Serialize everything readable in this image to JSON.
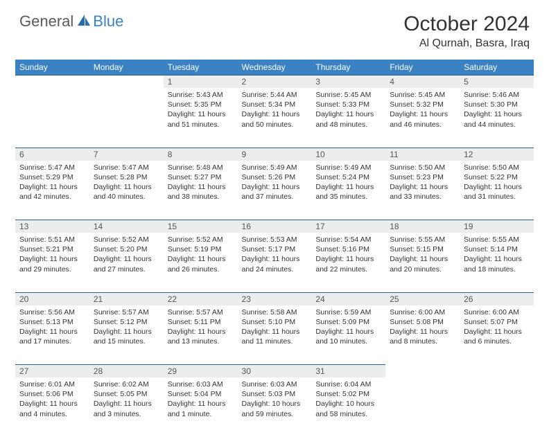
{
  "brand": {
    "part1": "General",
    "part2": "Blue",
    "icon_color": "#2b6cb0"
  },
  "title": "October 2024",
  "location": "Al Qurnah, Basra, Iraq",
  "colors": {
    "header_bg": "#3b82c4",
    "header_text": "#ffffff",
    "daynum_bg": "#eceded",
    "row_border": "#2b5c8a",
    "body_text": "#333333"
  },
  "day_headers": [
    "Sunday",
    "Monday",
    "Tuesday",
    "Wednesday",
    "Thursday",
    "Friday",
    "Saturday"
  ],
  "weeks": [
    [
      null,
      null,
      {
        "n": "1",
        "sr": "5:43 AM",
        "ss": "5:35 PM",
        "dl": "11 hours and 51 minutes."
      },
      {
        "n": "2",
        "sr": "5:44 AM",
        "ss": "5:34 PM",
        "dl": "11 hours and 50 minutes."
      },
      {
        "n": "3",
        "sr": "5:45 AM",
        "ss": "5:33 PM",
        "dl": "11 hours and 48 minutes."
      },
      {
        "n": "4",
        "sr": "5:45 AM",
        "ss": "5:32 PM",
        "dl": "11 hours and 46 minutes."
      },
      {
        "n": "5",
        "sr": "5:46 AM",
        "ss": "5:30 PM",
        "dl": "11 hours and 44 minutes."
      }
    ],
    [
      {
        "n": "6",
        "sr": "5:47 AM",
        "ss": "5:29 PM",
        "dl": "11 hours and 42 minutes."
      },
      {
        "n": "7",
        "sr": "5:47 AM",
        "ss": "5:28 PM",
        "dl": "11 hours and 40 minutes."
      },
      {
        "n": "8",
        "sr": "5:48 AM",
        "ss": "5:27 PM",
        "dl": "11 hours and 38 minutes."
      },
      {
        "n": "9",
        "sr": "5:49 AM",
        "ss": "5:26 PM",
        "dl": "11 hours and 37 minutes."
      },
      {
        "n": "10",
        "sr": "5:49 AM",
        "ss": "5:24 PM",
        "dl": "11 hours and 35 minutes."
      },
      {
        "n": "11",
        "sr": "5:50 AM",
        "ss": "5:23 PM",
        "dl": "11 hours and 33 minutes."
      },
      {
        "n": "12",
        "sr": "5:50 AM",
        "ss": "5:22 PM",
        "dl": "11 hours and 31 minutes."
      }
    ],
    [
      {
        "n": "13",
        "sr": "5:51 AM",
        "ss": "5:21 PM",
        "dl": "11 hours and 29 minutes."
      },
      {
        "n": "14",
        "sr": "5:52 AM",
        "ss": "5:20 PM",
        "dl": "11 hours and 27 minutes."
      },
      {
        "n": "15",
        "sr": "5:52 AM",
        "ss": "5:19 PM",
        "dl": "11 hours and 26 minutes."
      },
      {
        "n": "16",
        "sr": "5:53 AM",
        "ss": "5:17 PM",
        "dl": "11 hours and 24 minutes."
      },
      {
        "n": "17",
        "sr": "5:54 AM",
        "ss": "5:16 PM",
        "dl": "11 hours and 22 minutes."
      },
      {
        "n": "18",
        "sr": "5:55 AM",
        "ss": "5:15 PM",
        "dl": "11 hours and 20 minutes."
      },
      {
        "n": "19",
        "sr": "5:55 AM",
        "ss": "5:14 PM",
        "dl": "11 hours and 18 minutes."
      }
    ],
    [
      {
        "n": "20",
        "sr": "5:56 AM",
        "ss": "5:13 PM",
        "dl": "11 hours and 17 minutes."
      },
      {
        "n": "21",
        "sr": "5:57 AM",
        "ss": "5:12 PM",
        "dl": "11 hours and 15 minutes."
      },
      {
        "n": "22",
        "sr": "5:57 AM",
        "ss": "5:11 PM",
        "dl": "11 hours and 13 minutes."
      },
      {
        "n": "23",
        "sr": "5:58 AM",
        "ss": "5:10 PM",
        "dl": "11 hours and 11 minutes."
      },
      {
        "n": "24",
        "sr": "5:59 AM",
        "ss": "5:09 PM",
        "dl": "11 hours and 10 minutes."
      },
      {
        "n": "25",
        "sr": "6:00 AM",
        "ss": "5:08 PM",
        "dl": "11 hours and 8 minutes."
      },
      {
        "n": "26",
        "sr": "6:00 AM",
        "ss": "5:07 PM",
        "dl": "11 hours and 6 minutes."
      }
    ],
    [
      {
        "n": "27",
        "sr": "6:01 AM",
        "ss": "5:06 PM",
        "dl": "11 hours and 4 minutes."
      },
      {
        "n": "28",
        "sr": "6:02 AM",
        "ss": "5:05 PM",
        "dl": "11 hours and 3 minutes."
      },
      {
        "n": "29",
        "sr": "6:03 AM",
        "ss": "5:04 PM",
        "dl": "11 hours and 1 minute."
      },
      {
        "n": "30",
        "sr": "6:03 AM",
        "ss": "5:03 PM",
        "dl": "10 hours and 59 minutes."
      },
      {
        "n": "31",
        "sr": "6:04 AM",
        "ss": "5:02 PM",
        "dl": "10 hours and 58 minutes."
      },
      null,
      null
    ]
  ],
  "labels": {
    "sunrise": "Sunrise:",
    "sunset": "Sunset:",
    "daylight": "Daylight:"
  }
}
